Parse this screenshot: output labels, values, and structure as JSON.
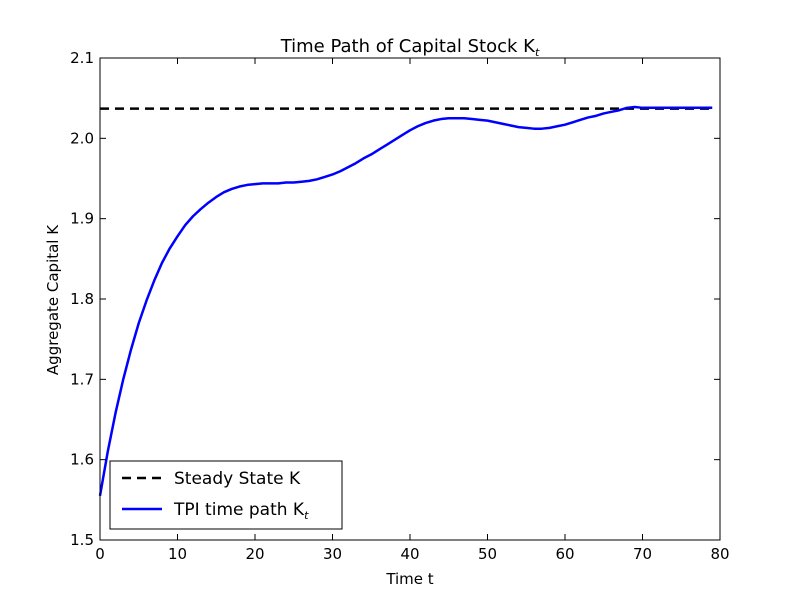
{
  "chart_data": {
    "type": "line",
    "title": "Time Path of Capital Stock K",
    "title_subscript": "t",
    "xlabel": "Time t",
    "ylabel": "Aggregate Capital K",
    "xlim": [
      0,
      80
    ],
    "ylim": [
      1.5,
      2.1
    ],
    "x_ticks": [
      "0",
      "10",
      "20",
      "30",
      "40",
      "50",
      "60",
      "70",
      "80"
    ],
    "y_ticks": [
      "1.5",
      "1.6",
      "1.7",
      "1.8",
      "1.9",
      "2.0",
      "2.1"
    ],
    "grid": false,
    "legend_position": "lower-left",
    "series": [
      {
        "name": "Steady State K",
        "name_subscript": "",
        "style": "dashed",
        "color": "#000000",
        "x": [
          0,
          79
        ],
        "y": [
          2.037,
          2.037
        ]
      },
      {
        "name": "TPI time path K",
        "name_subscript": "t",
        "style": "solid",
        "color": "#0000ff",
        "x": [
          0,
          1,
          2,
          3,
          4,
          5,
          6,
          7,
          8,
          9,
          10,
          11,
          12,
          13,
          14,
          15,
          16,
          17,
          18,
          19,
          20,
          21,
          22,
          23,
          24,
          25,
          26,
          27,
          28,
          29,
          30,
          31,
          32,
          33,
          34,
          35,
          36,
          37,
          38,
          39,
          40,
          41,
          42,
          43,
          44,
          45,
          46,
          47,
          48,
          49,
          50,
          51,
          52,
          53,
          54,
          55,
          56,
          57,
          58,
          59,
          60,
          61,
          62,
          63,
          64,
          65,
          66,
          67,
          68,
          69,
          70,
          71,
          72,
          73,
          74,
          75,
          76,
          77,
          78,
          79
        ],
        "y": [
          1.555,
          1.61,
          1.658,
          1.7,
          1.737,
          1.77,
          1.798,
          1.823,
          1.845,
          1.863,
          1.878,
          1.892,
          1.903,
          1.912,
          1.92,
          1.927,
          1.933,
          1.937,
          1.94,
          1.942,
          1.943,
          1.944,
          1.944,
          1.944,
          1.945,
          1.945,
          1.946,
          1.947,
          1.949,
          1.952,
          1.955,
          1.959,
          1.964,
          1.969,
          1.975,
          1.98,
          1.986,
          1.992,
          1.998,
          2.004,
          2.01,
          2.015,
          2.019,
          2.022,
          2.024,
          2.025,
          2.025,
          2.025,
          2.024,
          2.023,
          2.022,
          2.02,
          2.018,
          2.016,
          2.014,
          2.013,
          2.012,
          2.012,
          2.013,
          2.015,
          2.017,
          2.02,
          2.023,
          2.026,
          2.028,
          2.031,
          2.033,
          2.035,
          2.038,
          2.039,
          2.038,
          2.038,
          2.038,
          2.038,
          2.038,
          2.038,
          2.038,
          2.038,
          2.038,
          2.038
        ]
      }
    ]
  }
}
